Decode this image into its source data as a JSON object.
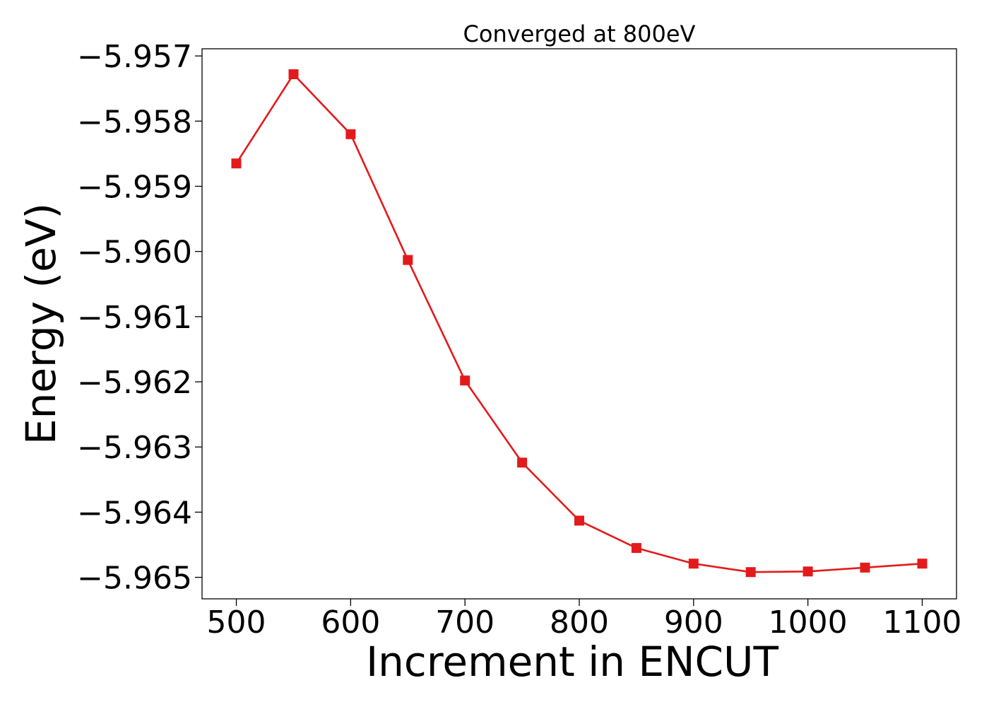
{
  "chart_data": {
    "type": "line",
    "title": "Converged at 800eV",
    "xlabel": "Increment in ENCUT",
    "ylabel": "Energy (eV)",
    "x": [
      500,
      550,
      600,
      650,
      700,
      750,
      800,
      850,
      900,
      950,
      1000,
      1050,
      1100
    ],
    "series": [
      {
        "values": [
          -5.95865,
          -5.95728,
          -5.9582,
          -5.96013,
          -5.96198,
          -5.96324,
          -5.96413,
          -5.96455,
          -5.96479,
          -5.96492,
          -5.96491,
          -5.96485,
          -5.96479
        ],
        "color": "#e31a1c",
        "marker": "square"
      }
    ],
    "xlim": [
      470,
      1130
    ],
    "ylim": [
      -5.96533,
      -5.95689
    ],
    "xticks": [
      500,
      600,
      700,
      800,
      900,
      1000,
      1100
    ],
    "xtick_labels": [
      "500",
      "600",
      "700",
      "800",
      "900",
      "1000",
      "1100"
    ],
    "yticks": [
      -5.957,
      -5.958,
      -5.959,
      -5.96,
      -5.961,
      -5.962,
      -5.963,
      -5.964,
      -5.965
    ],
    "ytick_labels": [
      "−5.957",
      "−5.958",
      "−5.959",
      "−5.960",
      "−5.961",
      "−5.962",
      "−5.963",
      "−5.964",
      "−5.965"
    ],
    "grid": false,
    "legend": false
  }
}
